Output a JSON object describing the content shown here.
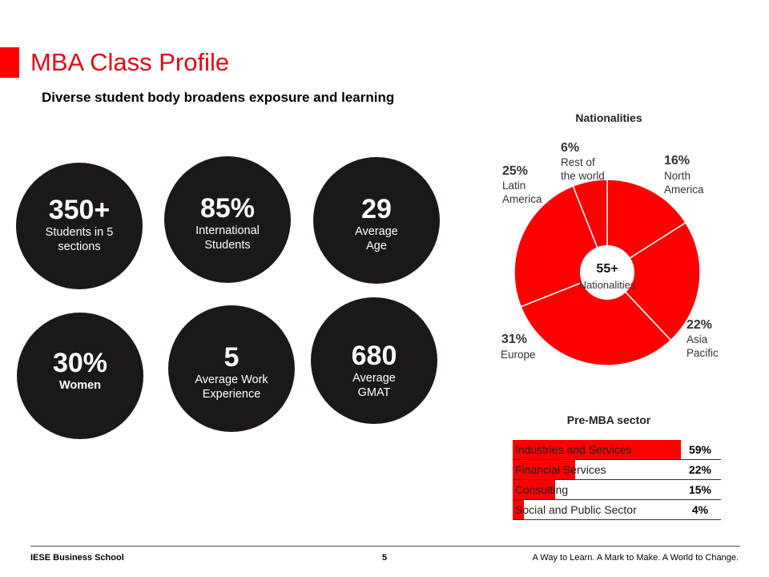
{
  "title": "MBA Class Profile",
  "subtitle": "Diverse student body broadens exposure and learning",
  "stats": [
    {
      "big": "350+",
      "line1": "Students in 5",
      "line2": "sections"
    },
    {
      "big": "85%",
      "line1": "International",
      "line2": "Students"
    },
    {
      "big": "29",
      "line1": "Average",
      "line2": "Age"
    },
    {
      "big": "30%",
      "line1": "Women",
      "line2": ""
    },
    {
      "big": "5",
      "line1": "Average Work",
      "line2": "Experience"
    },
    {
      "big": "680",
      "line1": "Average",
      "line2": "GMAT"
    }
  ],
  "nationalities": {
    "heading": "Nationalities",
    "center_count": "55+",
    "center_label": "Nationalities",
    "colors": {
      "fill": "#ff0000",
      "separator": "#ffffff"
    }
  },
  "sector": {
    "heading": "Pre-MBA sector",
    "bar_color": "#ff0000"
  },
  "chart_data": [
    {
      "type": "pie",
      "title": "Nationalities",
      "categories": [
        "North America",
        "Asia Pacific",
        "Europe",
        "Latin America",
        "Rest of the world"
      ],
      "values": [
        16,
        22,
        31,
        25,
        6
      ],
      "percent_labels": [
        "16%",
        "22%",
        "31%",
        "25%",
        "6%"
      ],
      "label_lines": [
        [
          "North",
          "America"
        ],
        [
          "Asia",
          "Pacific"
        ],
        [
          "Europe"
        ],
        [
          "Latin",
          "America"
        ],
        [
          "Rest of",
          "the world"
        ]
      ],
      "center_text": [
        "55+",
        "Nationalities"
      ]
    },
    {
      "type": "bar",
      "title": "Pre-MBA sector",
      "categories": [
        "Industries  and Services",
        "Financial Services",
        "Consulting",
        "Social and Public Sector"
      ],
      "values": [
        59,
        22,
        15,
        4
      ],
      "value_labels": [
        "59%",
        "22%",
        "15%",
        "4%"
      ]
    }
  ],
  "footer": {
    "left": "IESE Business School",
    "page": "5",
    "right": "A Way to Learn. A Mark to Make. A World to Change."
  }
}
